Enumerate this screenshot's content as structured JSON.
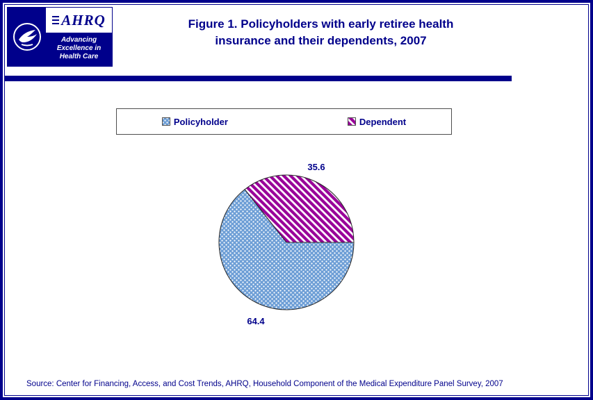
{
  "logo": {
    "hhs_alt": "HHS seal",
    "ahrq_acronym": "AHRQ",
    "tagline_line1": "Advancing",
    "tagline_line2": "Excellence in",
    "tagline_line3": "Health Care"
  },
  "header": {
    "title_line1": "Figure 1. Policyholders with early retiree health",
    "title_line2": "insurance and their dependents, 2007"
  },
  "legend": {
    "items": [
      {
        "label": "Policyholder",
        "pattern": "dots"
      },
      {
        "label": "Dependent",
        "pattern": "stripes"
      }
    ]
  },
  "chart_data": {
    "type": "pie",
    "title": "Figure 1. Policyholders with early retiree health insurance and their dependents, 2007",
    "labels": [
      "Policyholder",
      "Dependent"
    ],
    "values": [
      64.4,
      35.6
    ],
    "value_labels": [
      "64.4",
      "35.6"
    ],
    "units": "percent",
    "start_angle_deg_clockwise_from_top": 90,
    "direction": "clockwise",
    "legend_position": "top",
    "colors": {
      "policyholder_fill": "#6D9ED6",
      "policyholder_dot": "#FFFFFF",
      "dependent_stripe": "#990099",
      "dependent_bg": "#FFFFFF",
      "outline": "#262626",
      "accent_navy": "#00008B"
    }
  },
  "footer": {
    "source": "Source: Center for Financing, Access, and Cost Trends, AHRQ, Household Component of the Medical Expenditure Panel Survey, 2007"
  }
}
